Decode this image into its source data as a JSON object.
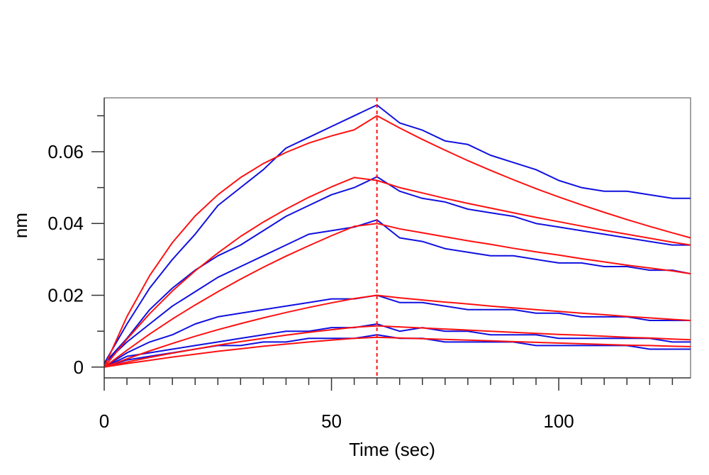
{
  "chart_data": {
    "type": "line",
    "title": "",
    "xlabel": "Time (sec)",
    "ylabel": "nm",
    "xlim": [
      0,
      129
    ],
    "ylim": [
      -0.003,
      0.075
    ],
    "x_ticks": [
      0,
      50,
      100
    ],
    "x_tick_labels": [
      "0",
      "50",
      "100"
    ],
    "y_ticks": [
      0,
      0.02,
      0.04,
      0.06
    ],
    "y_tick_labels": [
      "0",
      "0.02",
      "0.04",
      "0.06"
    ],
    "grid": false,
    "legend": "none",
    "dissociation_start_x": 60,
    "colors": {
      "measured": "#1010e0",
      "fit": "#ff1010",
      "marker": "#ff1010",
      "axes": "#333333"
    },
    "series": [
      {
        "x": [
          0,
          5,
          10,
          15,
          20,
          25,
          30,
          35,
          40,
          45,
          50,
          55,
          60,
          65,
          70,
          75,
          80,
          85,
          90,
          95,
          100,
          105,
          110,
          115,
          120,
          125,
          129
        ],
        "measured": [
          0.001,
          0.012,
          0.022,
          0.03,
          0.037,
          0.045,
          0.05,
          0.055,
          0.061,
          0.064,
          0.067,
          0.07,
          0.073,
          0.068,
          0.066,
          0.063,
          0.062,
          0.059,
          0.057,
          0.055,
          0.052,
          0.05,
          0.049,
          0.049,
          0.048,
          0.047,
          0.047
        ],
        "fit": [
          0.0,
          0.0141,
          0.0255,
          0.0347,
          0.0421,
          0.048,
          0.0528,
          0.0567,
          0.0598,
          0.0624,
          0.0644,
          0.0661,
          0.07,
          0.0666,
          0.0634,
          0.0604,
          0.0575,
          0.0548,
          0.0522,
          0.0497,
          0.0474,
          0.0452,
          0.0431,
          0.0411,
          0.0392,
          0.0374,
          0.036
        ]
      },
      {
        "x": [
          0,
          5,
          10,
          15,
          20,
          25,
          30,
          35,
          40,
          45,
          50,
          55,
          60,
          65,
          70,
          75,
          80,
          85,
          90,
          95,
          100,
          105,
          110,
          115,
          120,
          125,
          129
        ],
        "measured": [
          0.001,
          0.008,
          0.016,
          0.022,
          0.027,
          0.031,
          0.034,
          0.038,
          0.042,
          0.045,
          0.048,
          0.05,
          0.053,
          0.049,
          0.047,
          0.046,
          0.044,
          0.043,
          0.042,
          0.04,
          0.039,
          0.038,
          0.037,
          0.036,
          0.035,
          0.034,
          0.034
        ],
        "fit": [
          0.0,
          0.0078,
          0.0149,
          0.0212,
          0.0268,
          0.0318,
          0.0364,
          0.0404,
          0.044,
          0.0473,
          0.0502,
          0.0528,
          0.052,
          0.05,
          0.0485,
          0.047,
          0.0456,
          0.0443,
          0.043,
          0.0417,
          0.0405,
          0.0393,
          0.0381,
          0.037,
          0.0359,
          0.0348,
          0.034
        ]
      },
      {
        "x": [
          0,
          5,
          10,
          15,
          20,
          25,
          30,
          35,
          40,
          45,
          50,
          55,
          60,
          65,
          70,
          75,
          80,
          85,
          90,
          95,
          100,
          105,
          110,
          115,
          120,
          125,
          129
        ],
        "measured": [
          0.001,
          0.007,
          0.012,
          0.017,
          0.021,
          0.025,
          0.028,
          0.031,
          0.034,
          0.037,
          0.038,
          0.039,
          0.041,
          0.036,
          0.035,
          0.033,
          0.032,
          0.031,
          0.031,
          0.03,
          0.029,
          0.029,
          0.028,
          0.028,
          0.027,
          0.027,
          0.026
        ],
        "fit": [
          0.0,
          0.0047,
          0.0092,
          0.0134,
          0.0173,
          0.021,
          0.0245,
          0.0278,
          0.0309,
          0.0338,
          0.0366,
          0.0392,
          0.04,
          0.0385,
          0.0374,
          0.0363,
          0.0352,
          0.0342,
          0.0331,
          0.0321,
          0.0312,
          0.0302,
          0.0293,
          0.0284,
          0.0276,
          0.0268,
          0.026
        ]
      },
      {
        "x": [
          0,
          5,
          10,
          15,
          20,
          25,
          30,
          35,
          40,
          45,
          50,
          55,
          60,
          65,
          70,
          75,
          80,
          85,
          90,
          95,
          100,
          105,
          110,
          115,
          120,
          125,
          129
        ],
        "measured": [
          0.0,
          0.004,
          0.007,
          0.009,
          0.012,
          0.014,
          0.015,
          0.016,
          0.017,
          0.018,
          0.019,
          0.019,
          0.02,
          0.018,
          0.018,
          0.017,
          0.016,
          0.016,
          0.016,
          0.015,
          0.015,
          0.014,
          0.014,
          0.014,
          0.013,
          0.013,
          0.013
        ],
        "fit": [
          0.0,
          0.0023,
          0.0045,
          0.0066,
          0.0086,
          0.0104,
          0.0121,
          0.0137,
          0.0152,
          0.0166,
          0.0179,
          0.0191,
          0.02,
          0.0193,
          0.0187,
          0.0181,
          0.0176,
          0.017,
          0.0165,
          0.016,
          0.0155,
          0.015,
          0.0146,
          0.0141,
          0.0137,
          0.0133,
          0.013
        ]
      },
      {
        "x": [
          0,
          5,
          10,
          15,
          20,
          25,
          30,
          35,
          40,
          45,
          50,
          55,
          60,
          65,
          70,
          75,
          80,
          85,
          90,
          95,
          100,
          105,
          110,
          115,
          120,
          125,
          129
        ],
        "measured": [
          0.0,
          0.003,
          0.004,
          0.005,
          0.006,
          0.007,
          0.008,
          0.009,
          0.01,
          0.01,
          0.011,
          0.011,
          0.012,
          0.01,
          0.011,
          0.01,
          0.01,
          0.009,
          0.009,
          0.009,
          0.008,
          0.008,
          0.008,
          0.008,
          0.008,
          0.007,
          0.007
        ],
        "fit": [
          0.0,
          0.0014,
          0.0027,
          0.0039,
          0.005,
          0.0061,
          0.0071,
          0.008,
          0.0089,
          0.0097,
          0.0104,
          0.0111,
          0.0115,
          0.0112,
          0.0109,
          0.0106,
          0.0103,
          0.01,
          0.0097,
          0.0094,
          0.0091,
          0.0089,
          0.0086,
          0.0083,
          0.0081,
          0.0078,
          0.0076
        ]
      },
      {
        "x": [
          0,
          5,
          10,
          15,
          20,
          25,
          30,
          35,
          40,
          45,
          50,
          55,
          60,
          65,
          70,
          75,
          80,
          85,
          90,
          95,
          100,
          105,
          110,
          115,
          120,
          125,
          129
        ],
        "measured": [
          0.0,
          0.002,
          0.003,
          0.004,
          0.005,
          0.006,
          0.006,
          0.007,
          0.007,
          0.008,
          0.008,
          0.008,
          0.009,
          0.008,
          0.008,
          0.007,
          0.007,
          0.007,
          0.007,
          0.006,
          0.006,
          0.006,
          0.006,
          0.006,
          0.005,
          0.005,
          0.005
        ],
        "fit": [
          0.0,
          0.001,
          0.0019,
          0.0028,
          0.0036,
          0.0044,
          0.0051,
          0.0058,
          0.0064,
          0.007,
          0.0075,
          0.008,
          0.0083,
          0.0081,
          0.0079,
          0.0077,
          0.0075,
          0.0073,
          0.0071,
          0.0069,
          0.0067,
          0.0065,
          0.0063,
          0.0061,
          0.006,
          0.0058,
          0.0057
        ]
      }
    ]
  }
}
